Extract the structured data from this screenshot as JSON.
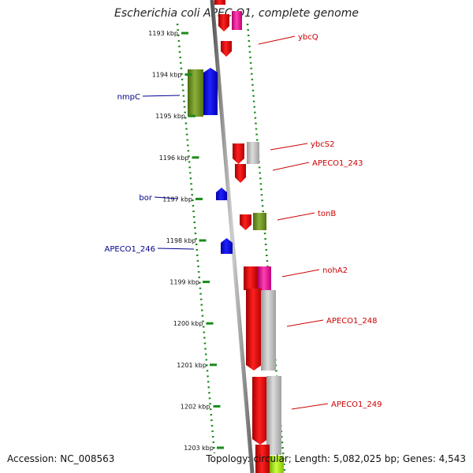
{
  "title": "Escherichia coli APEC O1, complete genome",
  "footer": {
    "accession": "Accession: NC_008563",
    "summary": "Topology: circular; Length: 5,082,025 bp; Genes: 4,543"
  },
  "colors": {
    "forward_label": "#cc0000",
    "reverse_label": "#00008b",
    "tick": "#1a8a1a",
    "backbone": "#808080"
  },
  "ticks": [
    {
      "label": "1193 kbp"
    },
    {
      "label": "1194 kbp"
    },
    {
      "label": "1195 kbp"
    },
    {
      "label": "1196 kbp"
    },
    {
      "label": "1197 kbp"
    },
    {
      "label": "1198 kbp"
    },
    {
      "label": "1199 kbp"
    },
    {
      "label": "1200 kbp"
    },
    {
      "label": "1201 kbp"
    },
    {
      "label": "1202 kbp"
    },
    {
      "label": "1203 kbp"
    }
  ],
  "genes": [
    {
      "name": "nmpC",
      "strand": "reverse",
      "color": "#0000ff"
    },
    {
      "name": "bor",
      "strand": "reverse",
      "color": "#0000ff"
    },
    {
      "name": "APECO1_246",
      "strand": "reverse",
      "color": "#0000ff"
    },
    {
      "name": "ybcQ",
      "strand": "forward",
      "color": "#ff0000"
    },
    {
      "name": "ybcS2",
      "strand": "forward",
      "color": "#ff0000"
    },
    {
      "name": "APECO1_243",
      "strand": "forward",
      "color": "#ff0000"
    },
    {
      "name": "tonB",
      "strand": "forward",
      "color": "#ff0000"
    },
    {
      "name": "nohA2",
      "strand": "forward",
      "color": "#ff0000"
    },
    {
      "name": "APECO1_248",
      "strand": "forward",
      "color": "#ff0000"
    },
    {
      "name": "APECO1_249",
      "strand": "forward",
      "color": "#ff0000"
    }
  ]
}
